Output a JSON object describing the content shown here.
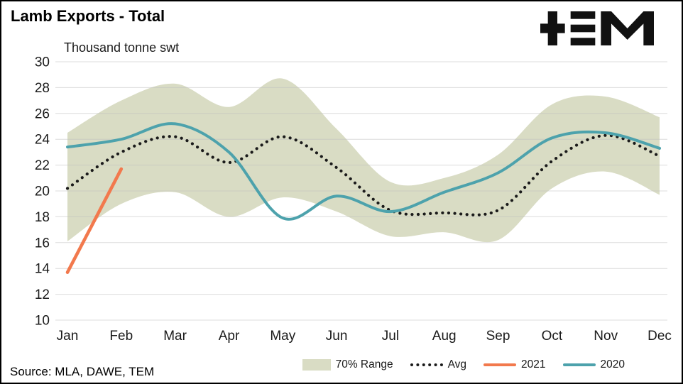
{
  "header": {
    "title": "Lamb Exports - Total",
    "subtitle": "Thousand tonne swt"
  },
  "footer": {
    "source": "Source: MLA, DAWE, TEM"
  },
  "legend": {
    "range": "70% Range",
    "avg": "Avg",
    "y2021": "2021",
    "y2020": "2020"
  },
  "chart_data": {
    "type": "line",
    "title": "Lamb Exports - Total",
    "ylabel": "Thousand tonne swt",
    "categories": [
      "Jan",
      "Feb",
      "Mar",
      "Apr",
      "May",
      "Jun",
      "Jul",
      "Aug",
      "Sep",
      "Oct",
      "Nov",
      "Dec"
    ],
    "y_ticks": [
      10,
      12,
      14,
      16,
      18,
      20,
      22,
      24,
      26,
      28,
      30
    ],
    "ylim": [
      10,
      30
    ],
    "grid": true,
    "legend_position": "bottom",
    "series": [
      {
        "name": "70% Range",
        "type": "band",
        "upper": [
          24.5,
          27.0,
          28.3,
          26.5,
          28.7,
          24.8,
          20.7,
          21.0,
          22.8,
          26.7,
          27.3,
          25.7
        ],
        "lower": [
          16.1,
          19.0,
          19.9,
          18.0,
          19.5,
          18.4,
          16.5,
          16.8,
          16.2,
          20.2,
          21.5,
          19.7
        ],
        "color": "#d9dcc4"
      },
      {
        "name": "Avg",
        "type": "dotted",
        "values": [
          20.2,
          23.0,
          24.2,
          22.2,
          24.2,
          21.8,
          18.5,
          18.3,
          18.5,
          22.3,
          24.3,
          22.7
        ],
        "color": "#1a1a1a"
      },
      {
        "name": "2021",
        "type": "line",
        "values": [
          13.7,
          21.7,
          null,
          null,
          null,
          null,
          null,
          null,
          null,
          null,
          null,
          null
        ],
        "color": "#f2794d"
      },
      {
        "name": "2020",
        "type": "line",
        "values": [
          23.4,
          24.0,
          25.2,
          23.0,
          17.9,
          19.6,
          18.4,
          19.9,
          21.4,
          24.1,
          24.5,
          23.3
        ],
        "color": "#4da2ac"
      }
    ]
  }
}
